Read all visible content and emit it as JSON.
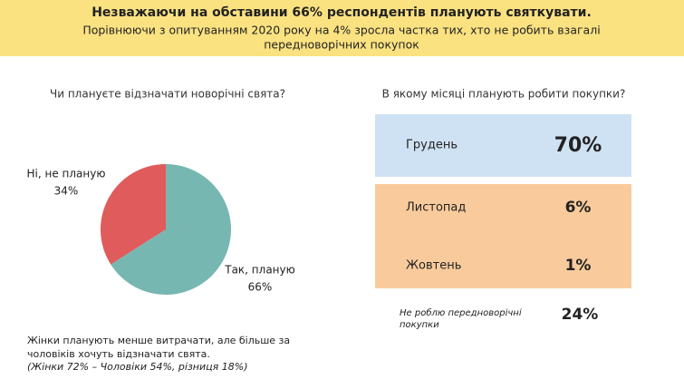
{
  "header": {
    "title": "Незважаючи на обставини 66% респондентів  планують святкувати.",
    "subtitle_lines": [
      "Порівнюючи з опитуванням 2020 року на 4% зросла частка тих, хто не робить взагалі",
      "передноворічних покупок"
    ]
  },
  "chart_data": {
    "type": "pie",
    "title": "Чи плануєте відзначати новорічні свята?",
    "categories": [
      "Так, планую",
      "Ні, не планую"
    ],
    "values": [
      66,
      34
    ],
    "value_labels": [
      "66%",
      "34%"
    ],
    "colors": [
      "#77b7b2",
      "#e05b5b"
    ]
  },
  "purchase_panel": {
    "title": "В якому місяці планують робити покупки?",
    "rows": [
      {
        "label": "Грудень",
        "value": "70%"
      },
      {
        "label": "Листопад",
        "value": "6%"
      },
      {
        "label": "Жовтень",
        "value": "1%"
      }
    ],
    "other": {
      "label_lines": [
        "Не роблю передноворічні",
        "покупки"
      ],
      "value": "24%"
    }
  },
  "note": {
    "lines": [
      "Жінки планують менше витрачати, але більше за",
      "чоловіків хочуть відзначати свята."
    ],
    "detail": "(Жінки 72% – Чоловіки 54%, різниця 18%)"
  }
}
